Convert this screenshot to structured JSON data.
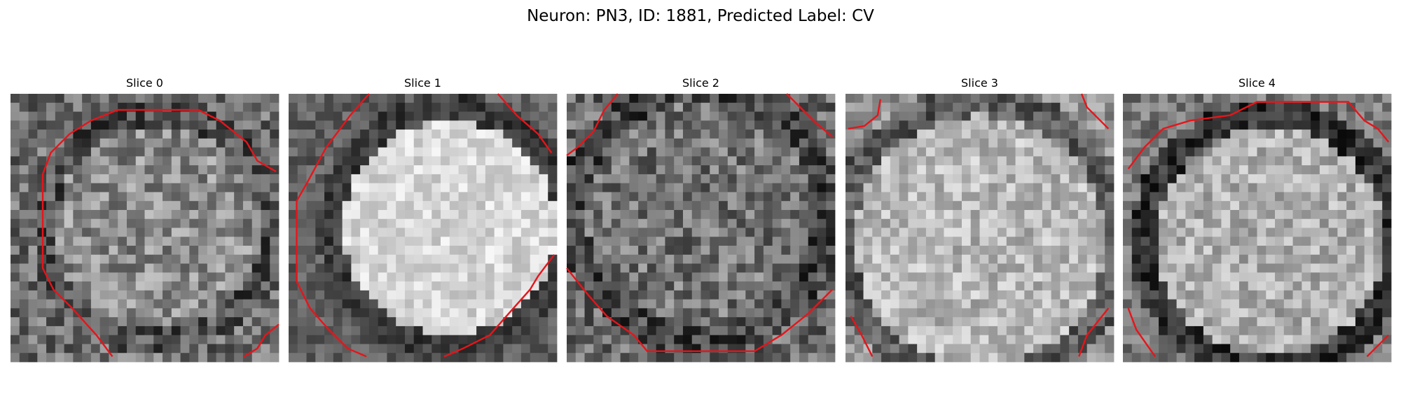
{
  "header": {
    "title": "Neuron: PN3, ID: 1881, Predicted Label: CV"
  },
  "panels": [
    {
      "title": "Slice 0"
    },
    {
      "title": "Slice 1"
    },
    {
      "title": "Slice 2"
    },
    {
      "title": "Slice 3"
    },
    {
      "title": "Slice 4"
    }
  ]
}
